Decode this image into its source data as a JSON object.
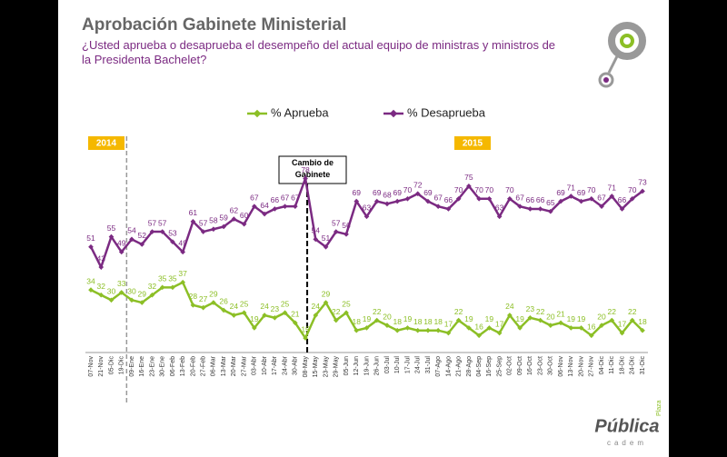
{
  "chart_data": {
    "type": "line",
    "title": "Aprobación Gabinete Ministerial",
    "subtitle": "¿Usted aprueba o desaprueba el desempeño del actual equipo de ministras y ministros de la Presidenta Bachelet?",
    "categories": [
      "07-Nov",
      "21-Nov",
      "05-Dic",
      "19-Dic",
      "09-Ene",
      "16-Ene",
      "23-Ene",
      "30-Ene",
      "06-Feb",
      "13-Feb",
      "20-Feb",
      "27-Feb",
      "06-Mar",
      "13-Mar",
      "20-Mar",
      "27-Mar",
      "03-Abr",
      "10-Abr",
      "17-Abr",
      "24-Abr",
      "30-Abr",
      "08-May",
      "15-May",
      "23-May",
      "29-May",
      "05-Jun",
      "12-Jun",
      "19-Jun",
      "26-Jun",
      "03-Jul",
      "10-Jul",
      "17-Jul",
      "24-Jul",
      "31-Jul",
      "07-Ago",
      "14-Ago",
      "21-Ago",
      "28-Ago",
      "04-Sep",
      "16-Sep",
      "25-Sep",
      "02-Oct",
      "09-Oct",
      "16-Oct",
      "23-Oct",
      "30-Oct",
      "06-Nov",
      "13-Nov",
      "20-Nov",
      "27-Nov",
      "04-Dic",
      "11-Dic",
      "18-Dic",
      "24-Dic",
      "31-Dic"
    ],
    "series": [
      {
        "name": "% Aprueba",
        "color": "#8cbf26",
        "values": [
          34,
          32,
          30,
          33,
          30,
          29,
          32,
          35,
          35,
          37,
          28,
          27,
          29,
          26,
          24,
          25,
          19,
          24,
          23,
          25,
          21,
          15,
          24,
          29,
          22,
          25,
          18,
          19,
          22,
          20,
          18,
          19,
          18,
          18,
          18,
          17,
          22,
          19,
          16,
          19,
          17,
          24,
          19,
          23,
          22,
          20,
          21,
          19,
          19,
          16,
          20,
          22,
          17,
          22,
          18
        ]
      },
      {
        "name": "% Desaprueba",
        "color": "#7b2a82",
        "values": [
          51,
          43,
          55,
          49,
          54,
          52,
          57,
          57,
          53,
          49,
          61,
          57,
          58,
          59,
          62,
          60,
          67,
          64,
          66,
          67,
          67,
          78,
          54,
          51,
          57,
          56,
          69,
          63,
          69,
          68,
          69,
          70,
          72,
          69,
          67,
          66,
          70,
          75,
          70,
          70,
          63,
          70,
          67,
          66,
          66,
          65,
          69,
          71,
          69,
          70,
          67,
          71,
          66,
          70,
          73
        ]
      }
    ],
    "ylim": [
      10,
      85
    ],
    "annotations": {
      "year_left": "2014",
      "year_right": "2015",
      "event": "Cambio de Gabinete"
    },
    "logo": {
      "top": "Plaza",
      "main": "Pública",
      "sub": "cadem"
    }
  }
}
